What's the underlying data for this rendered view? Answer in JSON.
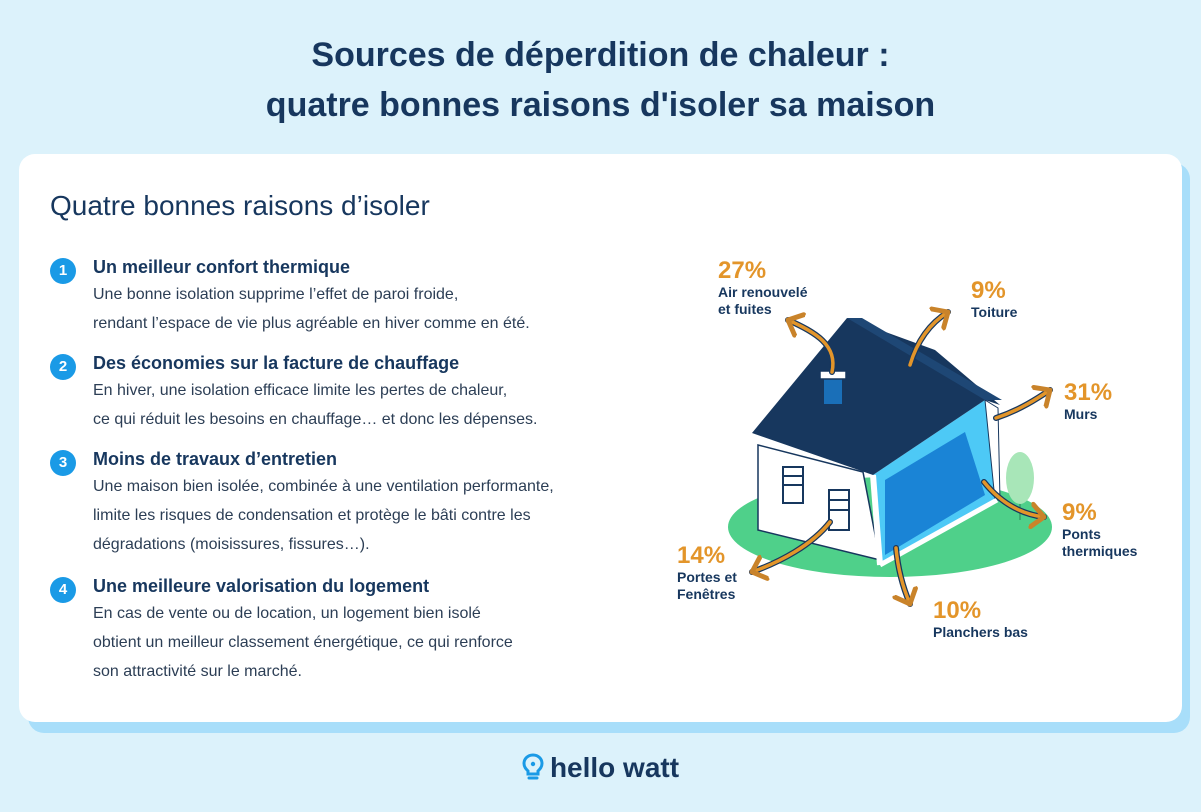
{
  "title": {
    "line1": "Sources de déperdition de chaleur :",
    "line2": "quatre bonnes raisons d'isoler sa maison"
  },
  "card": {
    "heading": "Quatre bonnes raisons d’isoler",
    "reasons": [
      {
        "num": "1",
        "title": "Un meilleur confort thermique",
        "lines": [
          "Une bonne isolation supprime l’effet de paroi froide,",
          "rendant l’espace de vie plus agréable en hiver comme en été."
        ]
      },
      {
        "num": "2",
        "title": "Des économies sur la facture de chauffage",
        "lines": [
          "En hiver, une isolation efficace limite les pertes de chaleur,",
          "ce qui réduit les besoins en chauffage… et donc les dépenses."
        ]
      },
      {
        "num": "3",
        "title": "Moins de travaux d’entretien",
        "lines": [
          "Une maison bien isolée, combinée à une ventilation performante,",
          "limite les risques de condensation et protège le bâti contre les",
          "dégradations (moisissures, fissures…)."
        ]
      },
      {
        "num": "4",
        "title": "Une meilleure valorisation du logement",
        "lines": [
          "En cas de vente ou de location, un logement bien isolé",
          "obtient un meilleur classement énergétique, ce qui renforce",
          "son attractivité sur le marché."
        ]
      }
    ]
  },
  "heat_loss": [
    {
      "pct": "27%",
      "label_lines": [
        "Air renouvelé",
        "et fuites"
      ]
    },
    {
      "pct": "9%",
      "label_lines": [
        "Toiture"
      ]
    },
    {
      "pct": "31%",
      "label_lines": [
        "Murs"
      ]
    },
    {
      "pct": "9%",
      "label_lines": [
        "Ponts",
        "thermiques"
      ]
    },
    {
      "pct": "10%",
      "label_lines": [
        "Planchers bas"
      ]
    },
    {
      "pct": "14%",
      "label_lines": [
        "Portes et",
        "Fenêtres"
      ]
    }
  ],
  "colors": {
    "background": "#dcf2fb",
    "title": "#17375e",
    "accent_orange": "#e3952a",
    "number_badge": "#1a9ae6",
    "lawn": "#4fd08a",
    "roof": "#17375e",
    "wall_insulation": "#4dc9f6"
  },
  "brand": {
    "name": "hello watt",
    "icon": "lightbulb-icon"
  }
}
